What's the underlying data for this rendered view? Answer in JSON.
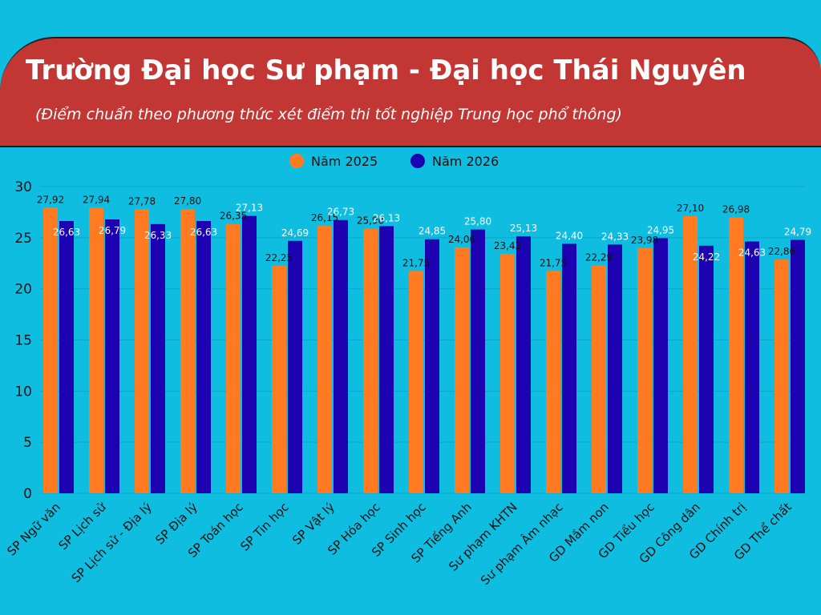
{
  "header": {
    "title": "Trường Đại học Sư phạm - Đại học Thái Nguyên",
    "subtitle": "(Điểm chuẩn theo phương thức xét điểm thi tốt nghiệp Trung học phổ thông)"
  },
  "colors": {
    "background": "#0fbde0",
    "banner": "#c23634",
    "series_2025": "#ff7a21",
    "series_2026": "#1c02b0"
  },
  "chart_data": {
    "type": "bar",
    "title": "Trường Đại học Sư phạm - Đại học Thái Nguyên",
    "subtitle": "(Điểm chuẩn theo phương thức xét điểm thi tốt nghiệp Trung học phổ thông)",
    "categories": [
      "SP Ngữ văn",
      "SP Lịch sử",
      "SP Lịch sử - Địa lý",
      "SP Địa lý",
      "SP Toán học",
      "SP Tin học",
      "SP Vật lý",
      "SP Hóa học",
      "SP Sinh học",
      "SP Tiếng Anh",
      "Sư phạm KHTN",
      "Sư phạm Âm nhạc",
      "GD Mầm non",
      "GD Tiểu học",
      "GD Công dân",
      "GD Chính trị",
      "GD Thể chất"
    ],
    "series": [
      {
        "name": "Năm 2025",
        "values": [
          27.92,
          27.94,
          27.78,
          27.8,
          26.35,
          22.25,
          26.15,
          25.9,
          21.75,
          24.06,
          23.43,
          21.75,
          22.29,
          23.98,
          27.1,
          26.98,
          22.86
        ],
        "labels": [
          "27,92",
          "27,94",
          "27,78",
          "27,80",
          "26,35",
          "22,25",
          "26,15",
          "25,90",
          "21,75",
          "24,06",
          "23,43",
          "21,75",
          "22,29",
          "23,98",
          "27,10",
          "26,98",
          "22,86"
        ]
      },
      {
        "name": "Năm 2026",
        "values": [
          26.63,
          26.79,
          26.33,
          26.63,
          27.13,
          24.69,
          26.73,
          26.13,
          24.85,
          25.8,
          25.13,
          24.4,
          24.33,
          24.95,
          24.22,
          24.63,
          24.79
        ],
        "labels": [
          "26,63",
          "26,79",
          "26,33",
          "26,63",
          "27,13",
          "24,69",
          "26,73",
          "26,13",
          "24,85",
          "25,80",
          "25,13",
          "24,40",
          "24,33",
          "24,95",
          "24,22",
          "24,63",
          "24,79"
        ]
      }
    ],
    "yticks": [
      "0",
      "5",
      "10",
      "15",
      "20",
      "25",
      "30"
    ],
    "ylim": [
      0,
      30
    ],
    "grid": true,
    "legend": "top-center",
    "xlabel": "",
    "ylabel": ""
  }
}
